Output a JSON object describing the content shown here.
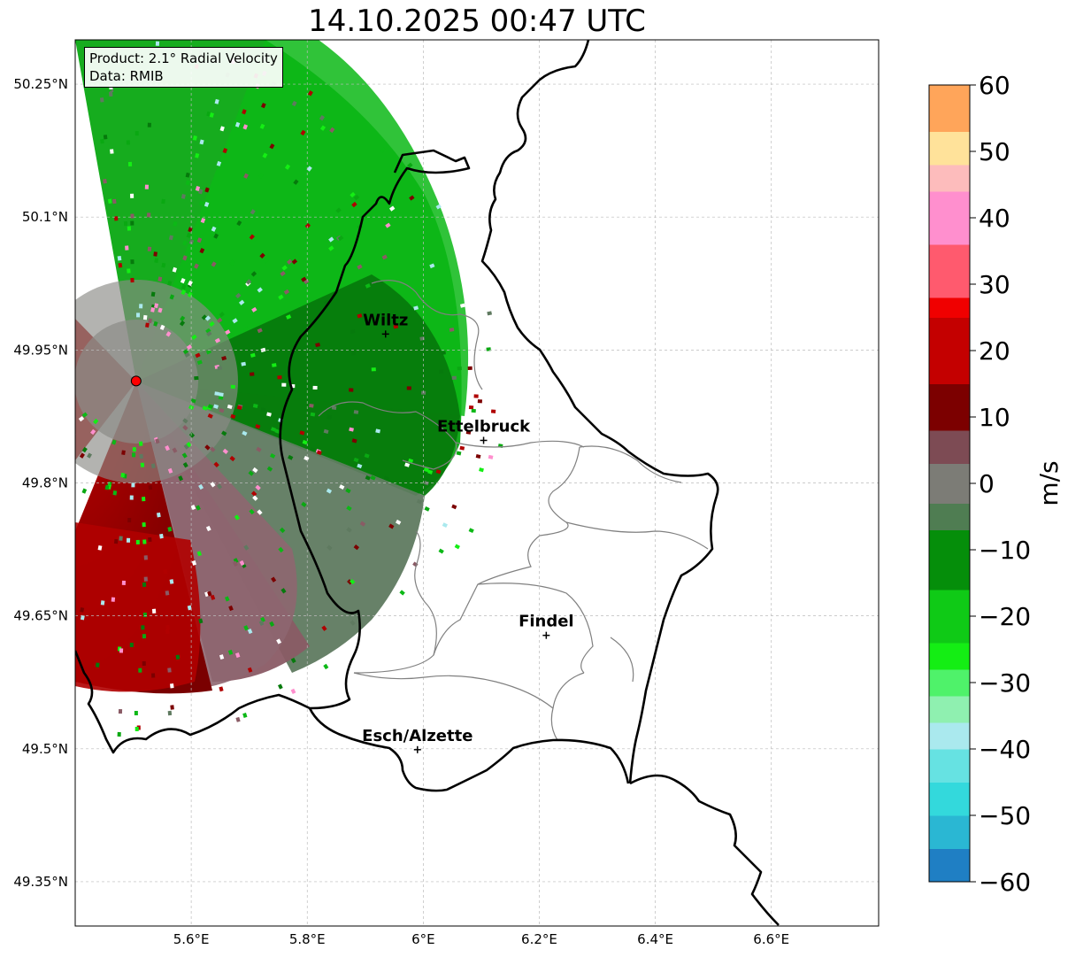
{
  "title": "14.10.2025 00:47 UTC",
  "info": {
    "product": "Product: 2.1° Radial Velocity",
    "data": "Data: RMIB"
  },
  "lat_ticks": [
    {
      "value": 50.25,
      "label": "50.25°N"
    },
    {
      "value": 50.1,
      "label": "50.1°N"
    },
    {
      "value": 49.95,
      "label": "49.95°N"
    },
    {
      "value": 49.8,
      "label": "49.8°N"
    },
    {
      "value": 49.65,
      "label": "49.65°N"
    },
    {
      "value": 49.5,
      "label": "49.5°N"
    },
    {
      "value": 49.35,
      "label": "49.35°N"
    }
  ],
  "lon_ticks": [
    {
      "value": 5.6,
      "label": "5.6°E"
    },
    {
      "value": 5.8,
      "label": "5.8°E"
    },
    {
      "value": 6.0,
      "label": "6°E"
    },
    {
      "value": 6.2,
      "label": "6.2°E"
    },
    {
      "value": 6.4,
      "label": "6.4°E"
    },
    {
      "value": 6.6,
      "label": "6.6°E"
    }
  ],
  "extent": {
    "lon_min": 5.4,
    "lon_max": 6.785,
    "lat_min": 49.3,
    "lat_max": 50.3
  },
  "radar": {
    "lon": 5.505,
    "lat": 49.915
  },
  "cities": [
    {
      "name": "Wiltz",
      "lon": 5.935,
      "lat": 49.968
    },
    {
      "name": "Ettelbruck",
      "lon": 6.104,
      "lat": 49.848
    },
    {
      "name": "Findel",
      "lon": 6.212,
      "lat": 49.628
    },
    {
      "name": "Esch/Alzette",
      "lon": 5.99,
      "lat": 49.499
    }
  ],
  "colorbar": {
    "unit": "m/s",
    "min": -60,
    "max": 60,
    "ticks": [
      {
        "value": 60,
        "label": "60"
      },
      {
        "value": 50,
        "label": "50"
      },
      {
        "value": 40,
        "label": "40"
      },
      {
        "value": 30,
        "label": "30"
      },
      {
        "value": 20,
        "label": "20"
      },
      {
        "value": 10,
        "label": "10"
      },
      {
        "value": 0,
        "label": "0"
      },
      {
        "value": -10,
        "label": "−10"
      },
      {
        "value": -20,
        "label": "−20"
      },
      {
        "value": -30,
        "label": "−30"
      },
      {
        "value": -40,
        "label": "−40"
      },
      {
        "value": -50,
        "label": "−50"
      },
      {
        "value": -60,
        "label": "−60"
      }
    ],
    "stops": [
      {
        "from": -60,
        "to": -55,
        "color": "#1f7fc4"
      },
      {
        "from": -55,
        "to": -50,
        "color": "#2ab7d3"
      },
      {
        "from": -50,
        "to": -45,
        "color": "#33d9dc"
      },
      {
        "from": -45,
        "to": -40,
        "color": "#66e2e2"
      },
      {
        "from": -40,
        "to": -36,
        "color": "#aae9ee"
      },
      {
        "from": -36,
        "to": -32,
        "color": "#8ff0b0"
      },
      {
        "from": -32,
        "to": -28,
        "color": "#4ff26a"
      },
      {
        "from": -28,
        "to": -24,
        "color": "#14ee14"
      },
      {
        "from": -24,
        "to": -16,
        "color": "#0fca16"
      },
      {
        "from": -16,
        "to": -7,
        "color": "#058e0a"
      },
      {
        "from": -7,
        "to": -3,
        "color": "#4f7d52"
      },
      {
        "from": -3,
        "to": 3,
        "color": "#7c7c76"
      },
      {
        "from": 3,
        "to": 8,
        "color": "#7d4b54"
      },
      {
        "from": 8,
        "to": 15,
        "color": "#7c0000"
      },
      {
        "from": 15,
        "to": 25,
        "color": "#c40000"
      },
      {
        "from": 25,
        "to": 28,
        "color": "#f00000"
      },
      {
        "from": 28,
        "to": 36,
        "color": "#ff5a6e"
      },
      {
        "from": 36,
        "to": 44,
        "color": "#ff8fce"
      },
      {
        "from": 44,
        "to": 48,
        "color": "#fdbcbc"
      },
      {
        "from": 48,
        "to": 53,
        "color": "#ffe29a"
      },
      {
        "from": 53,
        "to": 60,
        "color": "#ffa55a"
      }
    ]
  },
  "colors": {
    "border": "#000000",
    "canton": "#808080",
    "grid": "#bbbbbb",
    "radar_marker": "#ff0000"
  }
}
